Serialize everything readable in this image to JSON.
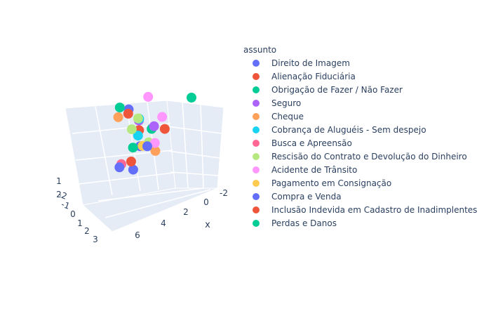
{
  "chart_data": {
    "type": "scatter",
    "dimension": "3d",
    "legend_title": "assunto",
    "legend_placement": "right",
    "grid": true,
    "axes": {
      "x": {
        "label": "x",
        "ticks": [
          "-2",
          "0",
          "2",
          "4",
          "6"
        ]
      },
      "y": {
        "label": "",
        "ticks": [
          "-2",
          "-1",
          "0",
          "1",
          "2",
          "3"
        ]
      },
      "z": {
        "label": "",
        "ticks": [
          "1",
          "2"
        ]
      }
    },
    "series": [
      {
        "name": "Direito de Imagem",
        "color": "#636efa",
        "points": [
          [
            0.5,
            2.0,
            1.3
          ],
          [
            1.5,
            0.8,
            0.4
          ],
          [
            2.5,
            0.6,
            -0.3
          ]
        ]
      },
      {
        "name": "Alienação Fiduciária",
        "color": "#EF553B",
        "points": [
          [
            0.9,
            1.2,
            0.8
          ],
          [
            2.0,
            1.0,
            -0.2
          ],
          [
            -0.5,
            0.6,
            0.8
          ]
        ]
      },
      {
        "name": "Obrigação de Fazer / Não Fazer",
        "color": "#00cc96",
        "points": [
          [
            1.0,
            2.2,
            1.4
          ],
          [
            0.4,
            0.8,
            0.9
          ],
          [
            2.0,
            0.9,
            0.4
          ]
        ]
      },
      {
        "name": "Seguro",
        "color": "#ab63fa",
        "points": [
          [
            0.4,
            1.5,
            1.0
          ],
          [
            0.0,
            0.9,
            0.9
          ]
        ]
      },
      {
        "name": "Cheque",
        "color": "#FFA15A",
        "points": [
          [
            0.8,
            2.4,
            0.9
          ],
          [
            2.3,
            -0.5,
            0.8
          ]
        ]
      },
      {
        "name": "Cobrança de Aluguéis - Sem despejo",
        "color": "#19d3f3",
        "points": [
          [
            0.2,
            1.6,
            1.0
          ],
          [
            1.0,
            1.2,
            0.6
          ]
        ]
      },
      {
        "name": "Busca e Apreensão",
        "color": "#FF6692",
        "points": [
          [
            3.8,
            0.5,
            0.2
          ]
        ]
      },
      {
        "name": "Rescisão do Contrato e Devolução do Dinheiro",
        "color": "#B6E880",
        "points": [
          [
            1.0,
            1.2,
            1.3
          ],
          [
            0.9,
            1.6,
            0.7
          ],
          [
            1.2,
            0.5,
            0.6
          ]
        ]
      },
      {
        "name": "Acidente de Trânsito",
        "color": "#FF97FF",
        "points": [
          [
            -1.0,
            1.8,
            1.6
          ],
          [
            -0.6,
            0.8,
            1.2
          ],
          [
            2.0,
            -0.3,
            1.0
          ]
        ]
      },
      {
        "name": "Pagamento em Consignação",
        "color": "#FECB52",
        "points": [
          [
            1.6,
            0.6,
            0.5
          ]
        ]
      },
      {
        "name": "Compra e Venda",
        "color": "#636efa",
        "points": [
          [
            2.2,
            0.0,
            0.8
          ],
          [
            4.5,
            0.2,
            0.3
          ]
        ]
      },
      {
        "name": "Inclusão Indevida em Cadastro de Inadimplentes",
        "color": "#EF553B",
        "points": [
          [
            0.2,
            2.2,
            1.0
          ]
        ]
      },
      {
        "name": "Perdas e Danos",
        "color": "#00cc96",
        "points": [
          [
            -2.0,
            0.0,
            2.0
          ]
        ]
      }
    ]
  }
}
